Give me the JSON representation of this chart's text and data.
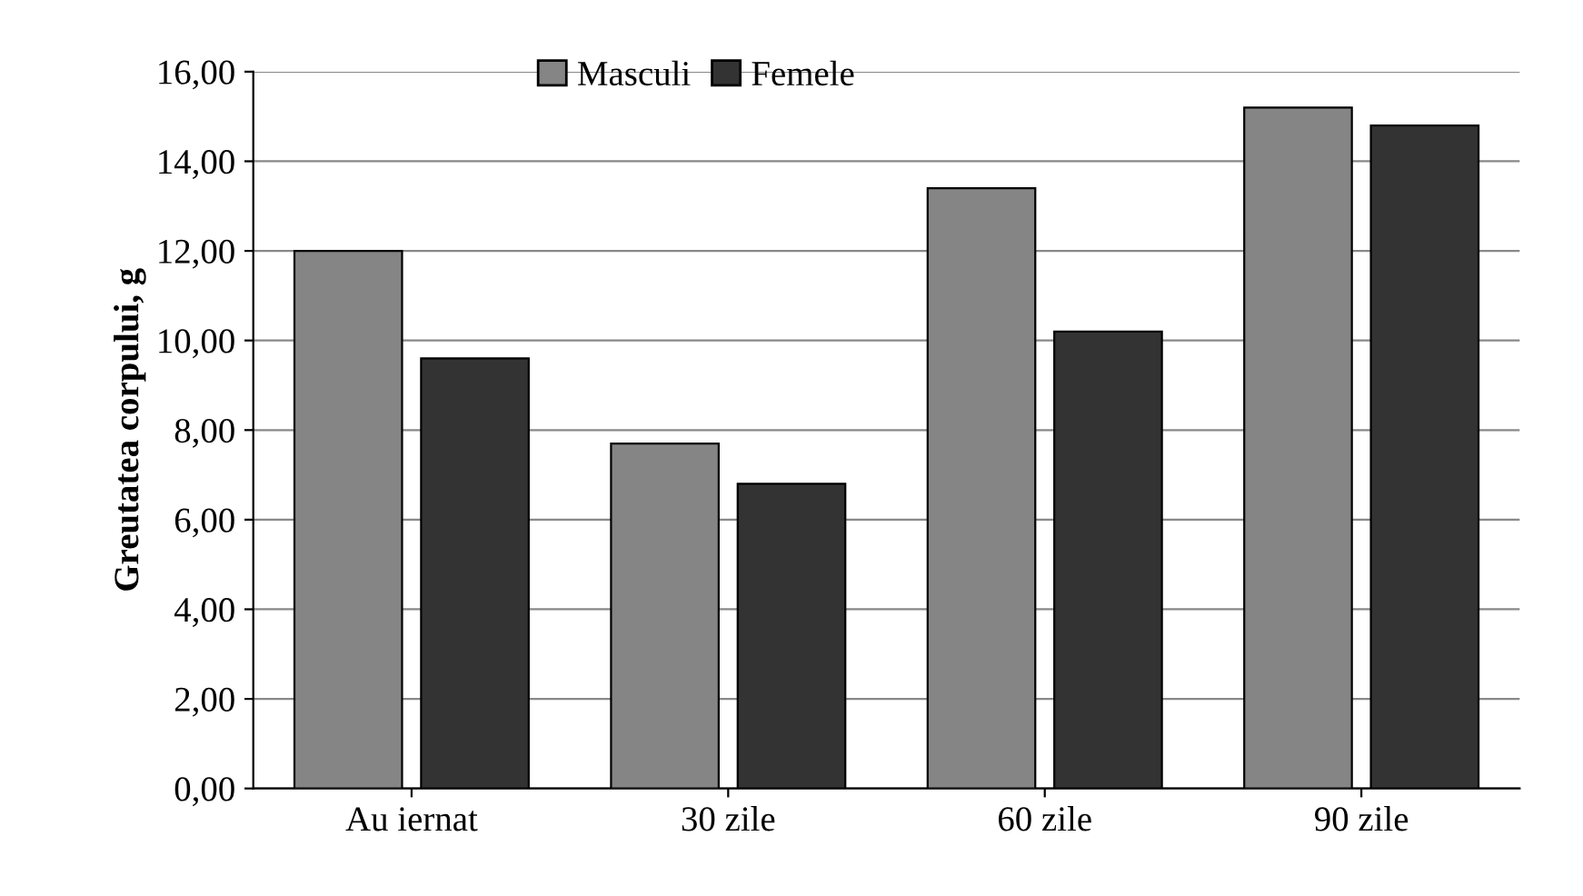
{
  "chart_data": {
    "type": "bar",
    "ylabel": "Greutatea corpului, g",
    "categories": [
      "Au iernat",
      "30 zile",
      "60 zile",
      "90 zile"
    ],
    "series": [
      {
        "name": "Masculi",
        "color": "#858585",
        "values": [
          12.0,
          7.7,
          13.4,
          15.2
        ]
      },
      {
        "name": "Femele",
        "color": "#333333",
        "values": [
          9.6,
          6.8,
          10.2,
          14.8
        ]
      }
    ],
    "ylim": [
      0,
      16
    ],
    "yticks": [
      {
        "value": 0,
        "label": "0,00"
      },
      {
        "value": 2,
        "label": "2,00"
      },
      {
        "value": 4,
        "label": "4,00"
      },
      {
        "value": 6,
        "label": "6,00"
      },
      {
        "value": 8,
        "label": "8,00"
      },
      {
        "value": 10,
        "label": "10,00"
      },
      {
        "value": 12,
        "label": "12,00"
      },
      {
        "value": 14,
        "label": "14,00"
      },
      {
        "value": 16,
        "label": "16,00"
      }
    ],
    "grid": "y",
    "legend": "top"
  }
}
